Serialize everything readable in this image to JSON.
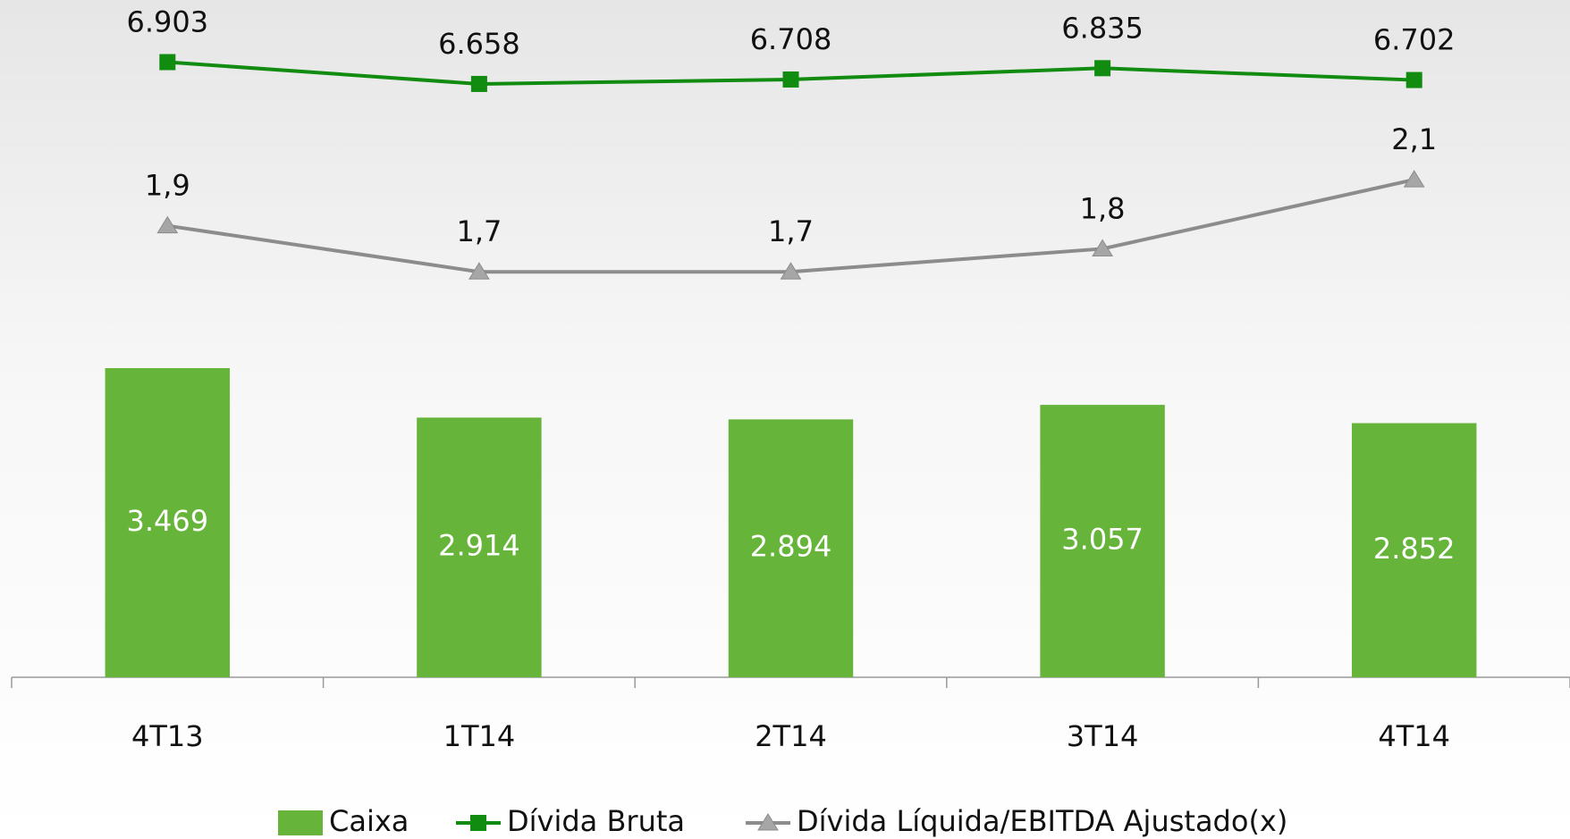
{
  "chart_data": {
    "type": "bar",
    "categories": [
      "4T13",
      "1T14",
      "2T14",
      "3T14",
      "4T14"
    ],
    "series": [
      {
        "name": "Caixa",
        "type": "bar",
        "color": "#66b53a",
        "values": [
          3469,
          2914,
          2894,
          3057,
          2852
        ],
        "value_labels": [
          "3.469",
          "2.914",
          "2.894",
          "3.057",
          "2.852"
        ]
      },
      {
        "name": "Dívida Bruta",
        "type": "line",
        "marker": "square",
        "color": "#118c11",
        "values": [
          6903,
          6658,
          6708,
          6835,
          6702
        ],
        "value_labels": [
          "6.903",
          "6.658",
          "6.708",
          "6.835",
          "6.702"
        ]
      },
      {
        "name": "Dívida Líquida/EBITDA Ajustado(x)",
        "type": "line",
        "marker": "triangle",
        "axis": "y2",
        "color": "#8c8c8c",
        "values": [
          1.9,
          1.7,
          1.7,
          1.8,
          2.1
        ],
        "value_labels": [
          "1,9",
          "1,7",
          "1,7",
          "1,8",
          "2,1"
        ]
      }
    ],
    "ylim": [
      0,
      7600
    ],
    "y2lim": [
      -0.06,
      2.88
    ]
  }
}
